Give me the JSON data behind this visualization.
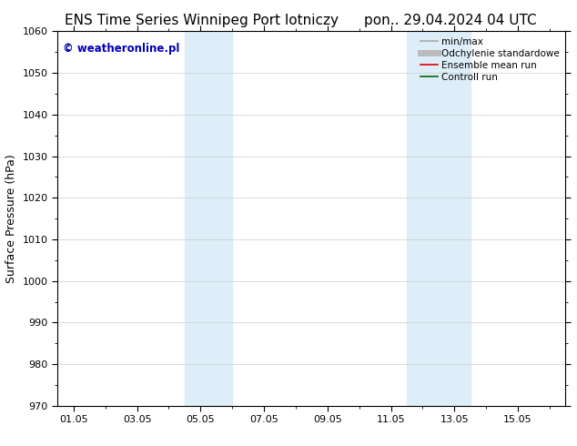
{
  "title_left": "ENS Time Series Winnipeg Port lotniczy",
  "title_right": "pon.. 29.04.2024 04 UTC",
  "ylabel": "Surface Pressure (hPa)",
  "xlim": [
    -0.5,
    15.5
  ],
  "ylim": [
    970,
    1060
  ],
  "yticks": [
    970,
    980,
    990,
    1000,
    1010,
    1020,
    1030,
    1040,
    1050,
    1060
  ],
  "xtick_positions": [
    0,
    2,
    4,
    6,
    8,
    10,
    12,
    14
  ],
  "xtick_labels": [
    "01.05",
    "03.05",
    "05.05",
    "07.05",
    "09.05",
    "11.05",
    "13.05",
    "15.05"
  ],
  "shaded_bands": [
    {
      "x_start": 3.5,
      "x_end": 5.0,
      "color": "#ddeef8"
    },
    {
      "x_start": 10.5,
      "x_end": 12.5,
      "color": "#ddeef8"
    }
  ],
  "watermark_text": "© weatheronline.pl",
  "watermark_color": "#0000bb",
  "watermark_fontsize": 8.5,
  "background_color": "#ffffff",
  "legend_items": [
    {
      "label": "min/max",
      "color": "#aaaaaa",
      "lw": 1.2
    },
    {
      "label": "Odchylenie standardowe",
      "color": "#bbbbbb",
      "lw": 5
    },
    {
      "label": "Ensemble mean run",
      "color": "#dd0000",
      "lw": 1.2
    },
    {
      "label": "Controll run",
      "color": "#006600",
      "lw": 1.2
    }
  ],
  "title_fontsize": 11,
  "axis_label_fontsize": 9,
  "tick_fontsize": 8,
  "legend_fontsize": 7.5
}
